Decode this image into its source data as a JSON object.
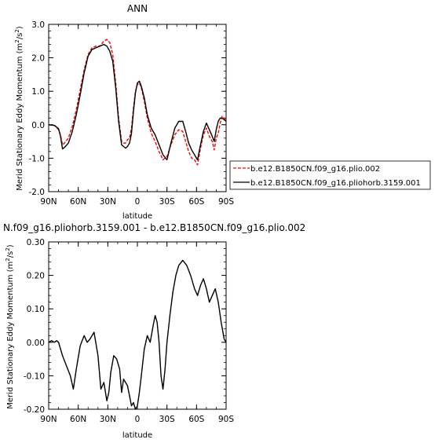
{
  "chart_data": [
    {
      "type": "line",
      "title": "ANN",
      "xlabel": "latitude",
      "ylabel": "Merid Stationary Eddy Momentum (m²/s²)",
      "ylabel_main": "Merid Stationary Eddy Momentum (m",
      "ylabel_sup1": "2",
      "ylabel_mid": "/s",
      "ylabel_sup2": "2",
      "ylabel_end": ")",
      "xlim": [
        90,
        -90
      ],
      "ylim": [
        -2.0,
        3.0
      ],
      "xticks": [
        {
          "value": 90,
          "label": "90N"
        },
        {
          "value": 60,
          "label": "60N"
        },
        {
          "value": 30,
          "label": "30N"
        },
        {
          "value": 0,
          "label": "0"
        },
        {
          "value": -30,
          "label": "30S"
        },
        {
          "value": -60,
          "label": "60S"
        },
        {
          "value": -90,
          "label": "90S"
        }
      ],
      "yticks": [
        {
          "value": -2.0,
          "label": "-2.0"
        },
        {
          "value": -1.0,
          "label": "-1.0"
        },
        {
          "value": 0.0,
          "label": "0.0"
        },
        {
          "value": 1.0,
          "label": "1.0"
        },
        {
          "value": 2.0,
          "label": "2.0"
        },
        {
          "value": 3.0,
          "label": "3.0"
        }
      ],
      "legend": {
        "placement": "right"
      },
      "series": [
        {
          "name": "b.e12.B1850CN.f09_g16.plio.002",
          "color": "#ff0000",
          "dash": "dashed",
          "x": [
            90,
            84,
            80,
            78,
            76,
            74,
            70,
            66,
            62,
            58,
            54,
            50,
            46,
            42,
            38,
            34,
            31,
            28,
            25,
            22,
            19,
            16,
            14,
            12,
            10,
            8,
            6,
            4,
            2,
            0,
            -2,
            -4,
            -7,
            -10,
            -14,
            -18,
            -22,
            -26,
            -30,
            -34,
            -38,
            -42,
            -46,
            -49,
            -52,
            -55,
            -58,
            -61,
            -64,
            -67,
            -70,
            -73,
            -76,
            -78,
            -80,
            -82,
            -84,
            -86,
            -88,
            -90
          ],
          "y": [
            0.0,
            -0.02,
            -0.15,
            -0.3,
            -0.6,
            -0.55,
            -0.4,
            -0.05,
            0.45,
            1.05,
            1.65,
            2.1,
            2.3,
            2.35,
            2.35,
            2.5,
            2.55,
            2.45,
            2.1,
            1.25,
            0.2,
            -0.5,
            -0.55,
            -0.55,
            -0.45,
            -0.4,
            -0.1,
            0.5,
            1.0,
            1.2,
            1.25,
            1.1,
            0.7,
            0.2,
            -0.25,
            -0.5,
            -0.8,
            -1.05,
            -0.95,
            -0.6,
            -0.3,
            -0.15,
            -0.2,
            -0.5,
            -0.8,
            -1.0,
            -1.05,
            -1.2,
            -0.7,
            -0.3,
            -0.1,
            -0.35,
            -0.5,
            -0.75,
            -0.4,
            -0.25,
            0.05,
            0.25,
            0.2,
            0.1
          ]
        },
        {
          "name": "b.e12.B1850CN.f09_g16.pliohorb.3159.001",
          "color": "#000000",
          "dash": "solid",
          "x": [
            90,
            84,
            80,
            78,
            76,
            74,
            70,
            66,
            62,
            58,
            54,
            50,
            46,
            42,
            38,
            34,
            31,
            28,
            25,
            22,
            19,
            16,
            14,
            12,
            10,
            8,
            6,
            4,
            2,
            0,
            -2,
            -4,
            -7,
            -10,
            -14,
            -18,
            -22,
            -26,
            -30,
            -34,
            -38,
            -42,
            -46,
            -49,
            -52,
            -55,
            -58,
            -61,
            -64,
            -67,
            -70,
            -73,
            -76,
            -78,
            -80,
            -82,
            -84,
            -86,
            -88,
            -90
          ],
          "y": [
            0.0,
            -0.02,
            -0.12,
            -0.35,
            -0.72,
            -0.68,
            -0.55,
            -0.2,
            0.3,
            0.9,
            1.55,
            2.05,
            2.25,
            2.3,
            2.35,
            2.4,
            2.35,
            2.2,
            1.9,
            1.1,
            0.1,
            -0.6,
            -0.65,
            -0.7,
            -0.65,
            -0.55,
            -0.25,
            0.4,
            0.95,
            1.25,
            1.3,
            1.15,
            0.8,
            0.3,
            -0.1,
            -0.3,
            -0.6,
            -0.9,
            -1.05,
            -0.55,
            -0.1,
            0.1,
            0.1,
            -0.2,
            -0.55,
            -0.75,
            -0.9,
            -1.05,
            -0.6,
            -0.2,
            0.05,
            -0.15,
            -0.35,
            -0.5,
            -0.15,
            0.1,
            0.2,
            0.2,
            0.15,
            0.1
          ]
        }
      ]
    },
    {
      "type": "line",
      "title": "N.f09_g16.pliohorb.3159.001 - b.e12.B1850CN.f09_g16.plio.002",
      "xlabel": "latitude",
      "ylabel": "Merid Stationary Eddy Momentum (m²/s²)",
      "ylabel_main": "Merid Stationary Eddy Momentum (m",
      "ylabel_sup1": "2",
      "ylabel_mid": "/s",
      "ylabel_sup2": "2",
      "ylabel_end": ")",
      "xlim": [
        90,
        -90
      ],
      "ylim": [
        -0.2,
        0.3
      ],
      "xticks": [
        {
          "value": 90,
          "label": "90N"
        },
        {
          "value": 60,
          "label": "60N"
        },
        {
          "value": 30,
          "label": "30N"
        },
        {
          "value": 0,
          "label": "0"
        },
        {
          "value": -30,
          "label": "30S"
        },
        {
          "value": -60,
          "label": "60S"
        },
        {
          "value": -90,
          "label": "90S"
        }
      ],
      "yticks": [
        {
          "value": -0.2,
          "label": "-0.20"
        },
        {
          "value": -0.1,
          "label": "-0.10"
        },
        {
          "value": 0.0,
          "label": "0.00"
        },
        {
          "value": 0.1,
          "label": "0.10"
        },
        {
          "value": 0.2,
          "label": "0.20"
        },
        {
          "value": 0.3,
          "label": "0.30"
        }
      ],
      "series": [
        {
          "color": "#000000",
          "dash": "solid",
          "x": [
            90,
            87,
            84,
            82,
            80,
            76,
            72,
            68,
            65,
            62,
            58,
            54,
            51,
            48,
            44,
            40,
            37,
            34,
            31,
            29,
            27,
            24,
            21,
            18,
            16,
            14,
            12,
            10,
            8,
            6,
            4,
            2,
            0,
            -2,
            -4,
            -7,
            -10,
            -13,
            -16,
            -18,
            -20,
            -22,
            -24,
            -26,
            -28,
            -30,
            -33,
            -36,
            -39,
            -42,
            -46,
            -50,
            -54,
            -58,
            -61,
            -64,
            -67,
            -70,
            -73,
            -76,
            -79,
            -82,
            -85,
            -88,
            -90
          ],
          "y": [
            0.0,
            0.005,
            0.0,
            0.005,
            0.0,
            -0.04,
            -0.07,
            -0.1,
            -0.14,
            -0.08,
            -0.01,
            0.02,
            0.0,
            0.01,
            0.03,
            -0.04,
            -0.14,
            -0.12,
            -0.175,
            -0.15,
            -0.09,
            -0.04,
            -0.05,
            -0.08,
            -0.15,
            -0.11,
            -0.12,
            -0.13,
            -0.16,
            -0.19,
            -0.18,
            -0.2,
            -0.19,
            -0.15,
            -0.1,
            -0.02,
            0.02,
            0.0,
            0.05,
            0.08,
            0.06,
            0.0,
            -0.1,
            -0.14,
            -0.08,
            0.0,
            0.08,
            0.15,
            0.2,
            0.23,
            0.245,
            0.23,
            0.2,
            0.16,
            0.14,
            0.17,
            0.19,
            0.16,
            0.12,
            0.14,
            0.16,
            0.12,
            0.06,
            0.01,
            0.0
          ]
        }
      ]
    }
  ]
}
